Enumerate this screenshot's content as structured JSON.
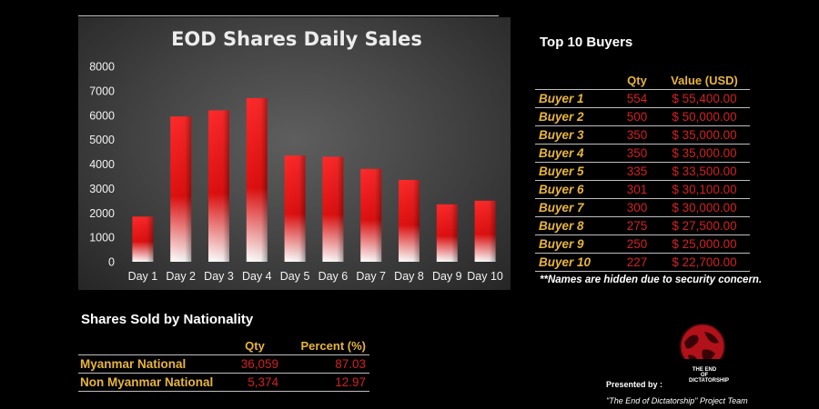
{
  "chart_data": {
    "type": "bar",
    "title": "EOD Shares Daily Sales",
    "categories": [
      "Day 1",
      "Day 2",
      "Day 3",
      "Day 4",
      "Day 5",
      "Day 6",
      "Day 7",
      "Day 8",
      "Day 9",
      "Day 10"
    ],
    "values": [
      1850,
      5950,
      6200,
      6700,
      4350,
      4300,
      3800,
      3350,
      2350,
      2500
    ],
    "ylim": [
      0,
      8000
    ],
    "yticks": [
      0,
      1000,
      2000,
      3000,
      4000,
      5000,
      6000,
      7000,
      8000
    ],
    "grid": false,
    "colors": {
      "bar_top": "#ff2a2a",
      "bar_bottom": "#ffffff",
      "bar_dark": "#8a0000"
    }
  },
  "top_buyers": {
    "title": "Top 10 Buyers",
    "headers": {
      "qty": "Qty",
      "value": "Value (USD)"
    },
    "rows": [
      {
        "name": "Buyer 1",
        "qty": "554",
        "value": "$ 55,400.00"
      },
      {
        "name": "Buyer 2",
        "qty": "500",
        "value": "$ 50,000.00"
      },
      {
        "name": "Buyer 3",
        "qty": "350",
        "value": "$ 35,000.00"
      },
      {
        "name": "Buyer 4",
        "qty": "350",
        "value": "$ 35,000.00"
      },
      {
        "name": "Buyer 5",
        "qty": "335",
        "value": "$ 33,500.00"
      },
      {
        "name": "Buyer 6",
        "qty": "301",
        "value": "$ 30,100.00"
      },
      {
        "name": "Buyer 7",
        "qty": "300",
        "value": "$ 30,000.00"
      },
      {
        "name": "Buyer 8",
        "qty": "275",
        "value": "$ 27,500.00"
      },
      {
        "name": "Buyer 9",
        "qty": "250",
        "value": "$ 25,000.00"
      },
      {
        "name": "Buyer 10",
        "qty": "227",
        "value": "$ 22,700.00"
      }
    ],
    "note": "**Names are hidden due to security concern."
  },
  "nationality": {
    "title": "Shares Sold by Nationality",
    "headers": {
      "qty": "Qty",
      "percent": "Percent (%)"
    },
    "rows": [
      {
        "name": "Myanmar National",
        "qty": "36,059",
        "percent": "87.03"
      },
      {
        "name": "Non Myanmar National",
        "qty": "5,374",
        "percent": "12.97"
      }
    ]
  },
  "footer": {
    "logo_text_1": "THE END OF",
    "logo_text_2": "DICTATORSHIP",
    "presented_by": "Presented by :",
    "team": "\"The End of Dictatorship\" Project Team"
  },
  "colors": {
    "accent_gold": "#e7b53c",
    "value_red": "#d42020"
  }
}
